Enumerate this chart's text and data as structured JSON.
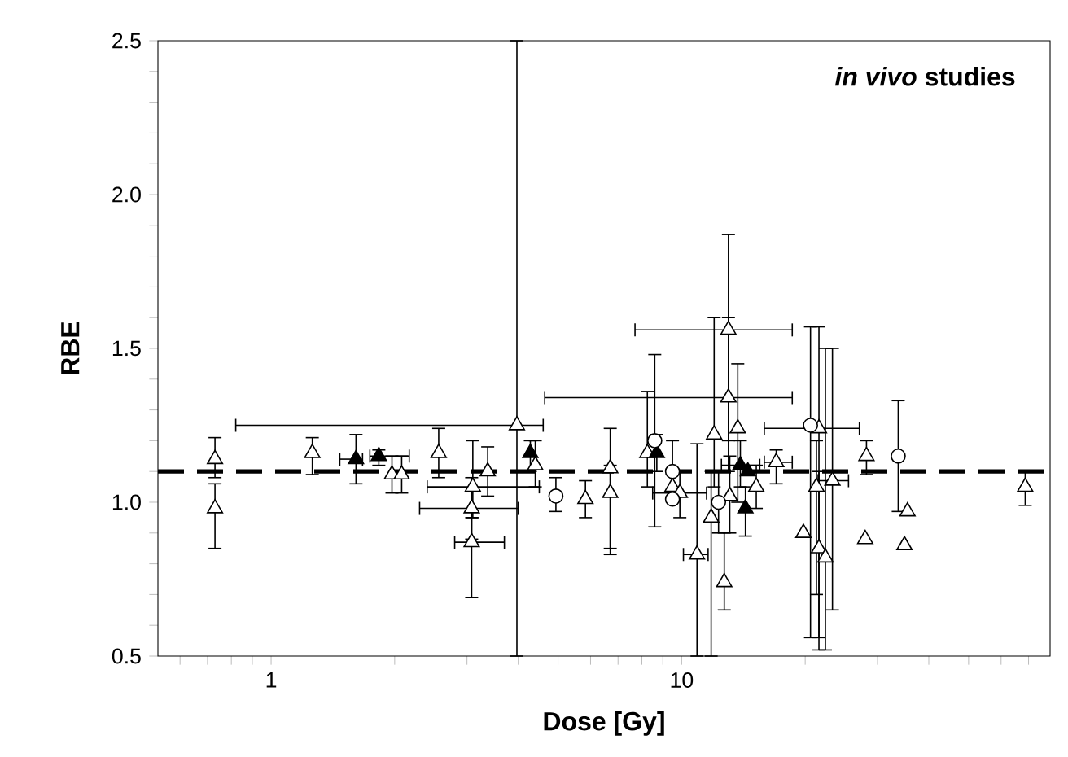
{
  "chart_data": {
    "type": "scatter",
    "xlabel": "Dose [Gy]",
    "ylabel": "RBE",
    "annotations": [
      "*in vivo* studies"
    ],
    "log": "x",
    "xlim": [
      0.53,
      79
    ],
    "ylim": [
      0.5,
      2.5
    ],
    "xticks": [
      {
        "value": 0.6,
        "label": null
      },
      {
        "value": 0.7,
        "label": null
      },
      {
        "value": 0.8,
        "label": null
      },
      {
        "value": 0.9,
        "label": null
      },
      1,
      {
        "value": 2,
        "label": null
      },
      {
        "value": 3,
        "label": null
      },
      {
        "value": 4,
        "label": null
      },
      {
        "value": 5,
        "label": null
      },
      {
        "value": 6,
        "label": null
      },
      {
        "value": 7,
        "label": null
      },
      {
        "value": 8,
        "label": null
      },
      {
        "value": 9,
        "label": null
      },
      10,
      {
        "value": 20,
        "label": null
      },
      {
        "value": 30,
        "label": null
      },
      {
        "value": 40,
        "label": null
      },
      {
        "value": 50,
        "label": null
      },
      {
        "value": 60,
        "label": null
      },
      {
        "value": 70,
        "label": null
      }
    ],
    "yticks": [
      {
        "value": 0.5,
        "label": "0.5"
      },
      {
        "value": 0.6,
        "label": null
      },
      {
        "value": 0.7,
        "label": null
      },
      {
        "value": 0.8,
        "label": null
      },
      {
        "value": 0.9,
        "label": null
      },
      {
        "value": 1.0,
        "label": "1.0"
      },
      {
        "value": 1.1,
        "label": null
      },
      {
        "value": 1.2,
        "label": null
      },
      {
        "value": 1.3,
        "label": null
      },
      {
        "value": 1.4,
        "label": null
      },
      {
        "value": 1.5,
        "label": "1.5"
      },
      {
        "value": 1.6,
        "label": null
      },
      {
        "value": 1.7,
        "label": null
      },
      {
        "value": 1.8,
        "label": null
      },
      {
        "value": 1.9,
        "label": null
      },
      {
        "value": 2.0,
        "label": "2.0"
      },
      {
        "value": 2.1,
        "label": null
      },
      {
        "value": 2.2,
        "label": null
      },
      {
        "value": 2.3,
        "label": null
      },
      {
        "value": 2.4,
        "label": null
      },
      {
        "value": 2.5,
        "label": "2.5"
      }
    ],
    "grid": false,
    "ref_lines": [
      {
        "axis": "y",
        "value": 1.1,
        "line_style": "dashed",
        "color": "#000000"
      }
    ],
    "series": [
      {
        "marker": "triangle",
        "color": "#ffffff",
        "x": [
          0.73,
          0.73,
          1.26,
          1.97,
          2.08,
          2.56,
          3.08,
          3.08,
          3.1,
          3.37,
          3.97,
          4.4,
          5.83,
          6.7,
          6.7,
          8.25,
          9.5,
          9.9,
          10.9,
          11.8,
          12.0,
          12.7,
          13.0,
          13.0,
          13.1,
          13.7,
          15.2,
          17.0,
          19.8,
          21.3,
          21.6,
          21.6,
          22.4,
          23.3,
          28.2,
          28.0,
          34.9,
          35.5,
          68.7
        ],
        "values": [
          1.14,
          0.98,
          1.16,
          1.09,
          1.09,
          1.16,
          0.87,
          0.98,
          1.05,
          1.1,
          1.25,
          1.12,
          1.01,
          1.03,
          1.11,
          1.16,
          1.05,
          1.03,
          0.83,
          0.95,
          1.22,
          0.74,
          1.56,
          1.34,
          1.02,
          1.24,
          1.05,
          1.13,
          0.9,
          1.05,
          1.24,
          0.85,
          0.82,
          1.07,
          1.15,
          0.88,
          0.86,
          0.97,
          1.05
        ],
        "errors": [
          [
            1.08,
            1.21
          ],
          [
            0.85,
            1.06
          ],
          [
            1.09,
            1.21
          ],
          [
            1.03,
            1.15
          ],
          [
            1.03,
            1.15
          ],
          [
            1.08,
            1.24
          ],
          [
            0.69,
            0.95
          ],
          [
            0.88,
            1.08
          ],
          [
            0.95,
            1.2
          ],
          [
            1.02,
            1.18
          ],
          [
            0.5,
            2.5
          ],
          [
            1.05,
            1.2
          ],
          [
            0.95,
            1.07
          ],
          [
            0.83,
            1.12
          ],
          [
            0.85,
            1.24
          ],
          [
            1.05,
            1.36
          ],
          null,
          [
            0.95,
            1.1
          ],
          [
            0.5,
            1.19
          ],
          [
            0.5,
            1.1
          ],
          [
            1.05,
            1.6
          ],
          [
            0.65,
            0.9
          ],
          [
            1.2,
            1.87
          ],
          [
            1.1,
            1.6
          ],
          [
            0.9,
            1.15
          ],
          [
            1.0,
            1.45
          ],
          [
            0.98,
            1.12
          ],
          [
            1.06,
            1.17
          ],
          null,
          [
            0.7,
            1.2
          ],
          [
            0.56,
            1.57
          ],
          [
            0.52,
            1.1
          ],
          [
            0.52,
            1.5
          ],
          [
            0.65,
            1.5
          ],
          [
            1.09,
            1.2
          ],
          null,
          null,
          null,
          [
            0.99,
            1.1
          ]
        ],
        "xerrors": [
          null,
          null,
          null,
          null,
          null,
          null,
          [
            2.8,
            3.7
          ],
          [
            2.3,
            4.0
          ],
          [
            2.4,
            4.5
          ],
          null,
          [
            0.82,
            4.6
          ],
          null,
          null,
          null,
          null,
          null,
          null,
          [
            8.5,
            11.5
          ],
          [
            10.1,
            11.6
          ],
          null,
          null,
          null,
          [
            7.7,
            18.6
          ],
          [
            4.64,
            18.6
          ],
          null,
          null,
          null,
          [
            15.9,
            18.6
          ],
          null,
          null,
          [
            15.9,
            27.1
          ],
          null,
          null,
          [
            21.5,
            25.5
          ],
          null,
          null,
          null,
          null,
          null
        ]
      },
      {
        "marker": "triangle",
        "color": "#000000",
        "x": [
          1.61,
          1.83,
          4.28,
          8.7,
          13.9,
          14.5,
          14.3
        ],
        "values": [
          1.14,
          1.15,
          1.16,
          1.16,
          1.12,
          1.1,
          0.98
        ],
        "errors": [
          [
            1.06,
            1.22
          ],
          [
            1.12,
            1.17
          ],
          [
            1.1,
            1.2
          ],
          [
            1.1,
            1.22
          ],
          [
            1.05,
            1.2
          ],
          null,
          [
            0.89,
            1.05
          ]
        ],
        "xerrors": [
          [
            1.47,
            1.67
          ],
          [
            1.74,
            2.17
          ],
          null,
          null,
          [
            12.5,
            15.5
          ],
          null,
          null
        ]
      },
      {
        "marker": "circle",
        "color": "#ffffff",
        "x": [
          4.94,
          8.6,
          9.5,
          9.5,
          12.3,
          20.6,
          33.7
        ],
        "values": [
          1.02,
          1.2,
          1.1,
          1.01,
          1.0,
          1.25,
          1.15
        ],
        "errors": [
          [
            0.97,
            1.08
          ],
          [
            0.92,
            1.48
          ],
          [
            1.0,
            1.2
          ],
          null,
          [
            0.9,
            1.1
          ],
          [
            0.56,
            1.57
          ],
          [
            0.97,
            1.33
          ]
        ],
        "xerrors": [
          null,
          null,
          null,
          null,
          null,
          null,
          null
        ]
      }
    ]
  }
}
